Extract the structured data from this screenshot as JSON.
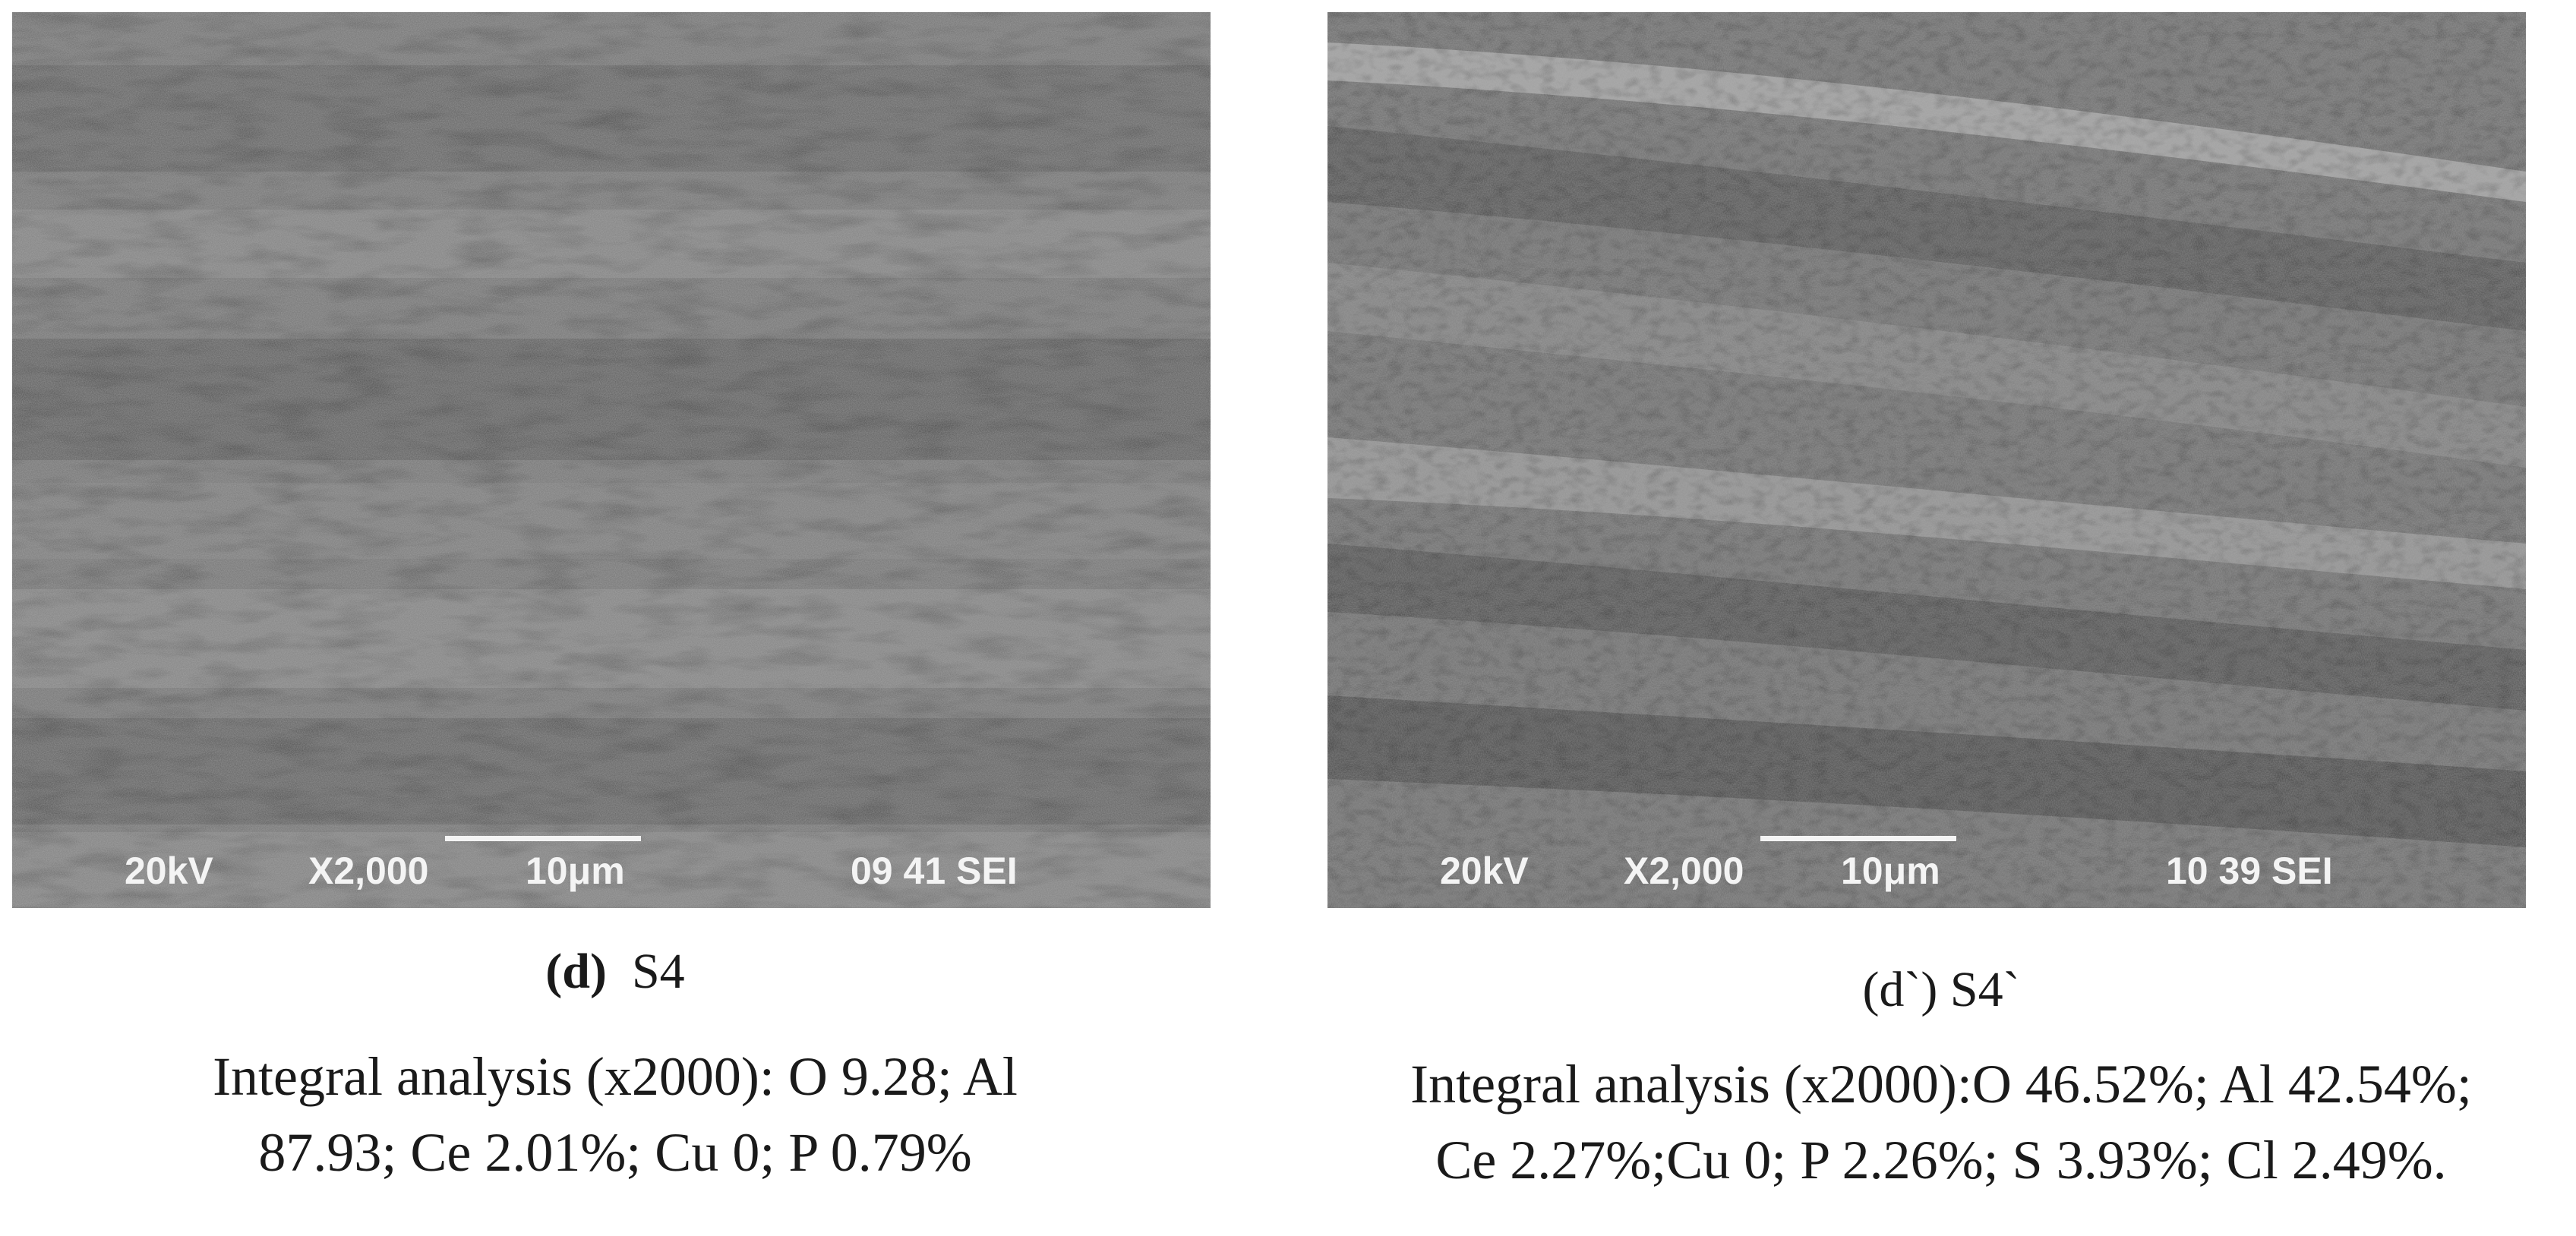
{
  "panels": [
    {
      "sem": {
        "voltage": "20kV",
        "magnification": "X2,000",
        "scale": "10μm",
        "code": "09 41 SEI"
      },
      "label": "(d)",
      "sample": "S4",
      "analysis_line1": "Integral analysis (x2000): O 9.28; Al",
      "analysis_line2": "87.93; Ce 2.01%; Cu 0; P 0.79%"
    },
    {
      "sem": {
        "voltage": "20kV",
        "magnification": "X2,000",
        "scale": "10μm",
        "code": "10 39 SEI"
      },
      "label": "(d`) S4`",
      "analysis_line1": "Integral analysis (x2000):O 46.52%; Al 42.54%;",
      "analysis_line2": "Ce 2.27%;Cu 0; P 2.26%; S 3.93%; Cl 2.49%."
    }
  ]
}
